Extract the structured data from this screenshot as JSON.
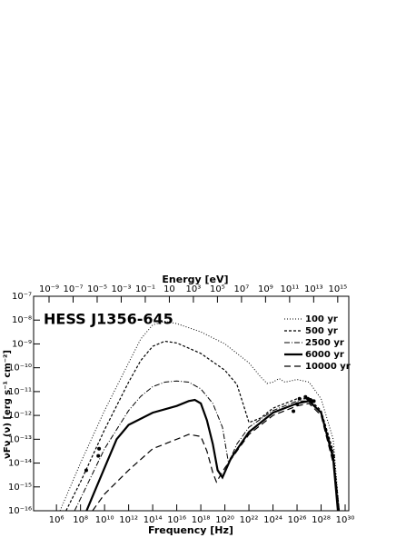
{
  "chart_data": {
    "type": "line",
    "title": "HESS J1356-645",
    "x_label": "Frequency [Hz]",
    "x2_label": "Energy [eV]",
    "y_label": "νFν (ν) [erg s⁻¹ cm⁻²]",
    "log_x": true,
    "log_y": true,
    "xlim": [
      12600,
      2e+30
    ],
    "x2lim": [
      5.2e-11,
      8300000000000000.0
    ],
    "ylim": [
      1e-16,
      1e-07
    ],
    "xticks": [
      {
        "value": 1000000.0,
        "label": "10⁶"
      },
      {
        "value": 100000000.0,
        "label": "10⁸"
      },
      {
        "value": 10000000000.0,
        "label": "10¹⁰"
      },
      {
        "value": 1000000000000.0,
        "label": "10¹²"
      },
      {
        "value": 100000000000000.0,
        "label": "10¹⁴"
      },
      {
        "value": 1e+16,
        "label": "10¹⁶"
      },
      {
        "value": 1e+18,
        "label": "10¹⁸"
      },
      {
        "value": 1e+20,
        "label": "10²⁰"
      },
      {
        "value": 1e+22,
        "label": "10²²"
      },
      {
        "value": 1e+24,
        "label": "10²⁴"
      },
      {
        "value": 1e+26,
        "label": "10²⁶"
      },
      {
        "value": 1e+28,
        "label": "10²⁸"
      },
      {
        "value": 1e+30,
        "label": "10³⁰"
      }
    ],
    "x2ticks": [
      {
        "value": 1e-09,
        "label": "10⁻⁹"
      },
      {
        "value": 1e-07,
        "label": "10⁻⁷"
      },
      {
        "value": 1e-05,
        "label": "10⁻⁵"
      },
      {
        "value": 0.001,
        "label": "10⁻³"
      },
      {
        "value": 0.1,
        "label": "10⁻¹"
      },
      {
        "value": 10,
        "label": "10"
      },
      {
        "value": 1000,
        "label": "10³"
      },
      {
        "value": 100000.0,
        "label": "10⁵"
      },
      {
        "value": 10000000.0,
        "label": "10⁷"
      },
      {
        "value": 1000000000.0,
        "label": "10⁹"
      },
      {
        "value": 100000000000.0,
        "label": "10¹¹"
      },
      {
        "value": 10000000000000.0,
        "label": "10¹³"
      },
      {
        "value": 1000000000000000.0,
        "label": "10¹⁵"
      }
    ],
    "yticks": [
      {
        "value": 1e-16,
        "label": "10⁻¹⁶"
      },
      {
        "value": 1e-15,
        "label": "10⁻¹⁵"
      },
      {
        "value": 1e-14,
        "label": "10⁻¹⁴"
      },
      {
        "value": 1e-13,
        "label": "10⁻¹³"
      },
      {
        "value": 1e-12,
        "label": "10⁻¹²"
      },
      {
        "value": 1e-11,
        "label": "10⁻¹¹"
      },
      {
        "value": 1e-10,
        "label": "10⁻¹⁰"
      },
      {
        "value": 1e-09,
        "label": "10⁻⁹"
      },
      {
        "value": 1e-08,
        "label": "10⁻⁸"
      },
      {
        "value": 1e-07,
        "label": "10⁻⁷"
      }
    ],
    "legend": "upper right",
    "series": [
      {
        "name": "100 yr",
        "color": "#000000",
        "dash": "1,2",
        "width": 1,
        "x": [
          2000000.0,
          100000000.0,
          10000000000.0,
          1000000000000.0,
          10000000000000.0,
          100000000000000.0,
          1000000000000000.0,
          1e+16,
          1e+18,
          1e+20,
          1e+22,
          1e+23,
          3.2e+23,
          1e+24,
          3.2e+24,
          1e+25,
          1e+26,
          1e+27,
          1e+28,
          1e+29,
          3.2e+29
        ],
        "values": [
          1e-16,
          1e-14,
          1.6e-12,
          1.6e-10,
          1.6e-09,
          6.3e-09,
          8.9e-09,
          7.1e-09,
          3.2e-09,
          1e-09,
          1.6e-10,
          4e-11,
          2.2e-11,
          2.5e-11,
          3.5e-11,
          2.5e-11,
          3.2e-11,
          2.5e-11,
          5e-12,
          1e-13,
          1e-16
        ]
      },
      {
        "name": "500 yr",
        "color": "#000000",
        "dash": "3,2",
        "width": 1.2,
        "x": [
          6300000.0,
          100000000.0,
          10000000000.0,
          1000000000000.0,
          10000000000000.0,
          100000000000000.0,
          1000000000000000.0,
          1e+16,
          1e+18,
          1e+20,
          1e+21,
          3.2e+21,
          1e+22,
          1e+23,
          1e+24,
          1e+25,
          1e+26,
          1e+27,
          1e+28,
          1e+29,
          3.2e+29
        ],
        "values": [
          1e-16,
          1.6e-15,
          2.5e-13,
          2.5e-11,
          2e-10,
          7.9e-10,
          1.3e-09,
          1.1e-09,
          4e-10,
          7.9e-11,
          2e-11,
          3.2e-12,
          5e-13,
          7.9e-13,
          2e-12,
          3.2e-12,
          5e-12,
          5e-12,
          1.6e-12,
          3.2e-14,
          1e-16
        ]
      },
      {
        "name": "2500 yr",
        "color": "#000000",
        "dash": "6,2,1,2",
        "width": 1,
        "x": [
          32000000.0,
          100000000.0,
          10000000000.0,
          1000000000000.0,
          10000000000000.0,
          100000000000000.0,
          1000000000000000.0,
          1e+16,
          1e+17,
          1e+18,
          1e+19,
          6.3e+19,
          2e+20,
          1e+21,
          1e+22,
          1e+24,
          1e+26,
          1e+27,
          1e+28,
          1e+29,
          3.2e+29
        ],
        "values": [
          1e-16,
          3.2e-16,
          4e-14,
          1.6e-12,
          6.3e-12,
          1.6e-11,
          2.5e-11,
          2.8e-11,
          2.5e-11,
          1.3e-11,
          3.2e-12,
          3.2e-13,
          1e-14,
          6.3e-14,
          3.2e-13,
          1.6e-12,
          4e-12,
          4e-12,
          1.3e-12,
          2.5e-14,
          1e-16
        ]
      },
      {
        "name": "6000 yr",
        "color": "#000000",
        "dash": "none",
        "width": 2.2,
        "x": [
          320000000.0,
          1000000000.0,
          10000000000.0,
          100000000000.0,
          1000000000000.0,
          100000000000000.0,
          1e+16,
          1e+17,
          3.2e+17,
          1e+18,
          3.2e+18,
          1e+19,
          2.5e+19,
          6.3e+19,
          3.2e+20,
          1e+22,
          1e+24,
          1e+26,
          1e+27,
          1e+28,
          1e+29,
          2.5e+29
        ],
        "values": [
          1e-16,
          4e-16,
          6.3e-15,
          1e-13,
          4e-13,
          1.3e-12,
          2.5e-12,
          4e-12,
          4.5e-12,
          3.2e-12,
          6.3e-13,
          6.3e-14,
          5e-15,
          2.5e-15,
          1.6e-14,
          2e-13,
          1.3e-12,
          3.2e-12,
          4e-12,
          1.3e-12,
          1.6e-14,
          1e-16
        ]
      },
      {
        "name": "10000 yr",
        "color": "#000000",
        "dash": "7,4",
        "width": 1.2,
        "x": [
          1000000000.0,
          10000000000.0,
          1000000000000.0,
          100000000000000.0,
          1e+16,
          1e+17,
          1e+18,
          3.2e+18,
          1e+19,
          2e+19,
          1e+20,
          1e+22,
          1e+24,
          1e+26,
          1e+27,
          1e+28,
          1e+29,
          3.2e+29
        ],
        "values": [
          1e-16,
          5e-16,
          5e-15,
          4e-14,
          1e-13,
          1.6e-13,
          1.3e-13,
          3.2e-14,
          4e-15,
          1.6e-15,
          6.3e-15,
          1.6e-13,
          1e-12,
          2.5e-12,
          3.2e-12,
          1e-12,
          1e-14,
          1e-16
        ]
      }
    ],
    "data_points": {
      "color": "#000000",
      "x": [
        300000000.0,
        3000000000.0,
        3500000000.0,
        5e+25,
        1e+26,
        1.6e+26,
        5e+26,
        8e+26,
        1.3e+27,
        2e+27,
        2.5e+27,
        1e+29
      ],
      "values": [
        5e-15,
        2e-14,
        4e-14,
        1.5e-12,
        3e-12,
        5e-12,
        6e-12,
        5e-12,
        4.5e-12,
        4e-12,
        4e-12,
        2e-14
      ]
    }
  }
}
